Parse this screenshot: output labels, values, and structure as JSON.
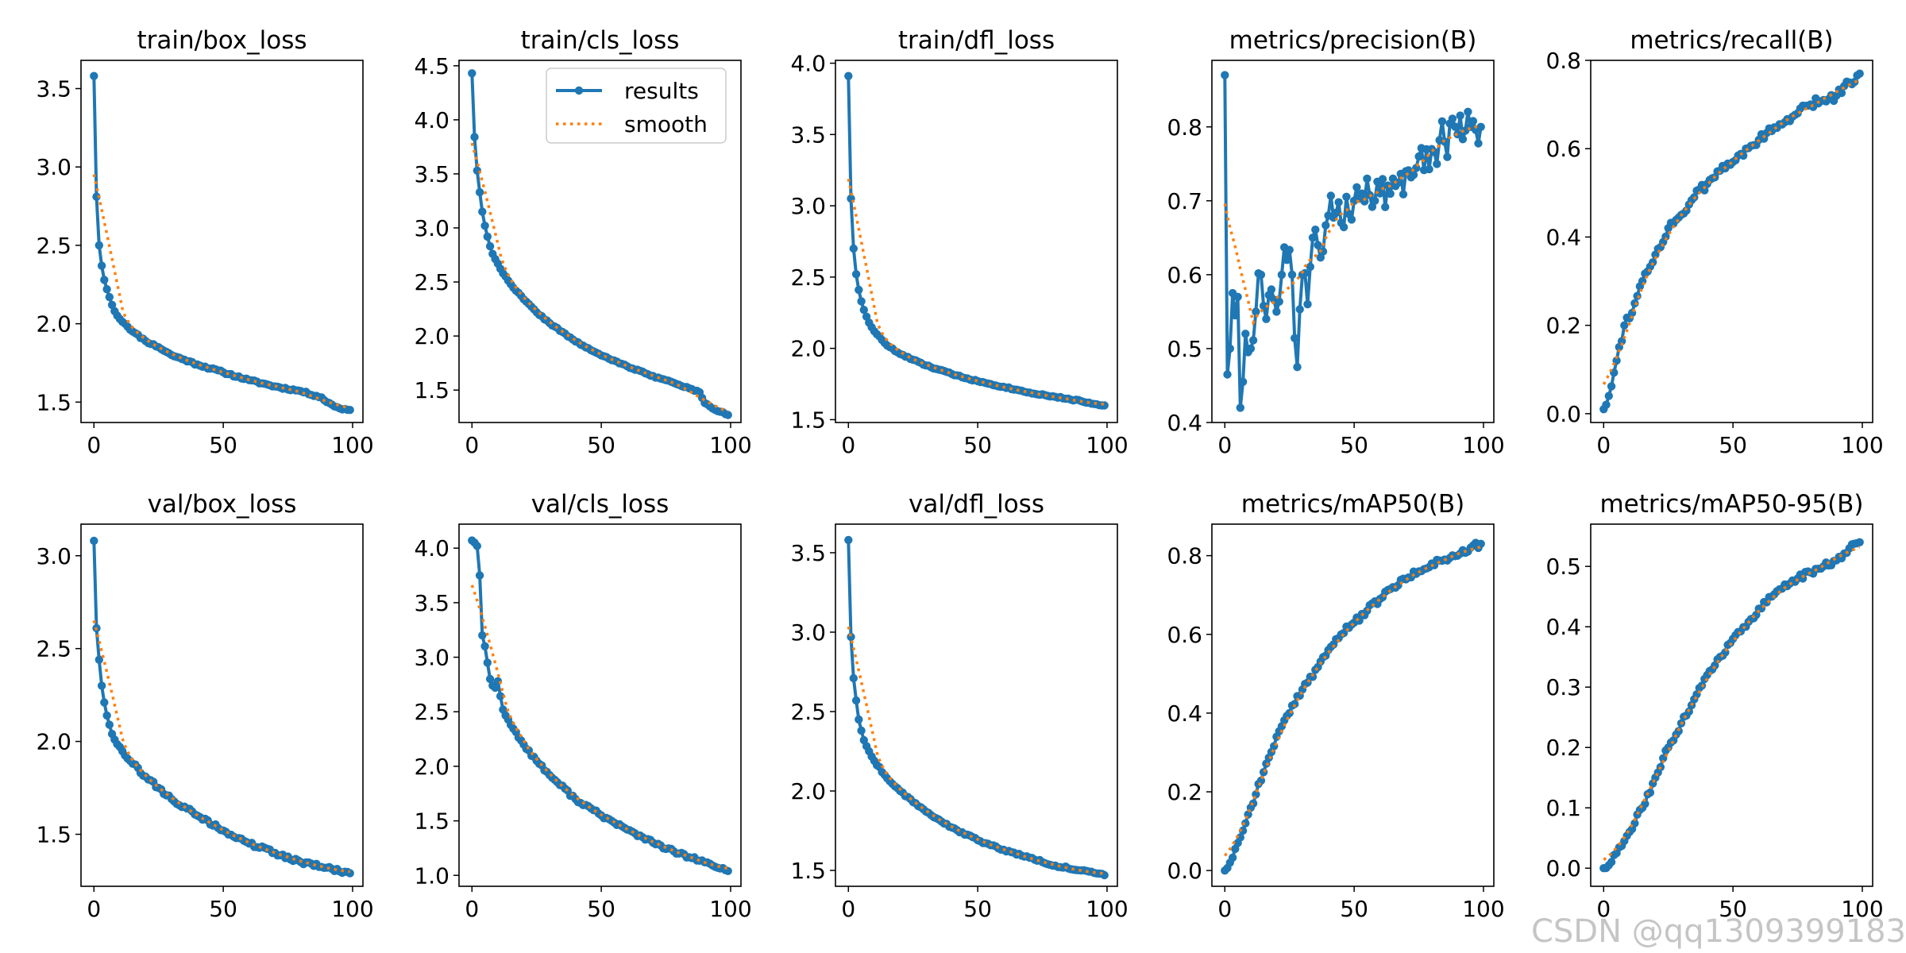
{
  "legend": {
    "results": "results",
    "smooth": "smooth",
    "placement": "upper right, train/cls_loss panel"
  },
  "colors": {
    "results": "#1f77b4",
    "smooth": "#ff7f0e"
  },
  "watermark": "CSDN @qq1309399183",
  "chart_data": [
    {
      "type": "line",
      "title": "train/box_loss",
      "xlim": [
        -5,
        104
      ],
      "ylim": [
        1.37,
        3.68
      ],
      "xticks": [
        0,
        50,
        100
      ],
      "yticks": [
        1.5,
        2.0,
        2.5,
        3.0,
        3.5
      ],
      "ytick_labels": [
        "1.5",
        "2.0",
        "2.5",
        "3.0",
        "3.5"
      ],
      "anchors": [
        [
          0,
          3.58
        ],
        [
          1,
          2.81
        ],
        [
          2,
          2.5
        ],
        [
          3,
          2.37
        ],
        [
          4,
          2.28
        ],
        [
          5,
          2.22
        ],
        [
          6,
          2.17
        ],
        [
          7,
          2.12
        ],
        [
          8,
          2.08
        ],
        [
          10,
          2.03
        ],
        [
          12,
          2.0
        ],
        [
          15,
          1.95
        ],
        [
          20,
          1.89
        ],
        [
          25,
          1.85
        ],
        [
          30,
          1.8
        ],
        [
          35,
          1.77
        ],
        [
          40,
          1.74
        ],
        [
          50,
          1.69
        ],
        [
          60,
          1.64
        ],
        [
          70,
          1.6
        ],
        [
          80,
          1.57
        ],
        [
          88,
          1.53
        ],
        [
          90,
          1.5
        ],
        [
          95,
          1.46
        ],
        [
          99,
          1.45
        ]
      ],
      "noise": 0.006,
      "seed": 11
    },
    {
      "type": "line",
      "title": "train/cls_loss",
      "xlim": [
        -5,
        104
      ],
      "ylim": [
        1.2,
        4.55
      ],
      "xticks": [
        0,
        50,
        100
      ],
      "yticks": [
        1.5,
        2.0,
        2.5,
        3.0,
        3.5,
        4.0,
        4.5
      ],
      "ytick_labels": [
        "1.5",
        "2.0",
        "2.5",
        "3.0",
        "3.5",
        "4.0",
        "4.5"
      ],
      "anchors": [
        [
          0,
          4.43
        ],
        [
          1,
          3.84
        ],
        [
          2,
          3.53
        ],
        [
          3,
          3.33
        ],
        [
          4,
          3.15
        ],
        [
          5,
          3.02
        ],
        [
          6,
          2.92
        ],
        [
          7,
          2.83
        ],
        [
          8,
          2.76
        ],
        [
          10,
          2.67
        ],
        [
          12,
          2.58
        ],
        [
          15,
          2.48
        ],
        [
          20,
          2.34
        ],
        [
          25,
          2.22
        ],
        [
          30,
          2.12
        ],
        [
          40,
          1.95
        ],
        [
          50,
          1.82
        ],
        [
          60,
          1.72
        ],
        [
          70,
          1.63
        ],
        [
          80,
          1.55
        ],
        [
          88,
          1.48
        ],
        [
          90,
          1.38
        ],
        [
          93,
          1.33
        ],
        [
          96,
          1.3
        ],
        [
          99,
          1.27
        ]
      ],
      "noise": 0.006,
      "seed": 22,
      "legend": true
    },
    {
      "type": "line",
      "title": "train/dfl_loss",
      "xlim": [
        -5,
        104
      ],
      "ylim": [
        1.48,
        4.02
      ],
      "xticks": [
        0,
        50,
        100
      ],
      "yticks": [
        1.5,
        2.0,
        2.5,
        3.0,
        3.5,
        4.0
      ],
      "ytick_labels": [
        "1.5",
        "2.0",
        "2.5",
        "3.0",
        "3.5",
        "4.0"
      ],
      "anchors": [
        [
          0,
          3.91
        ],
        [
          1,
          3.05
        ],
        [
          2,
          2.7
        ],
        [
          3,
          2.52
        ],
        [
          4,
          2.41
        ],
        [
          5,
          2.33
        ],
        [
          6,
          2.27
        ],
        [
          8,
          2.18
        ],
        [
          10,
          2.12
        ],
        [
          15,
          2.02
        ],
        [
          20,
          1.96
        ],
        [
          30,
          1.88
        ],
        [
          40,
          1.82
        ],
        [
          50,
          1.77
        ],
        [
          60,
          1.73
        ],
        [
          70,
          1.69
        ],
        [
          80,
          1.66
        ],
        [
          90,
          1.63
        ],
        [
          95,
          1.61
        ],
        [
          99,
          1.6
        ]
      ],
      "noise": 0.005,
      "seed": 33
    },
    {
      "type": "line",
      "title": "metrics/precision(B)",
      "xlim": [
        -5,
        104
      ],
      "ylim": [
        0.4,
        0.89
      ],
      "xticks": [
        0,
        50,
        100
      ],
      "yticks": [
        0.4,
        0.5,
        0.6,
        0.7,
        0.8
      ],
      "ytick_labels": [
        "0.4",
        "0.5",
        "0.6",
        "0.7",
        "0.8"
      ],
      "anchors": [
        [
          0,
          0.87
        ],
        [
          1,
          0.465
        ],
        [
          2,
          0.5
        ],
        [
          3,
          0.575
        ],
        [
          4,
          0.545
        ],
        [
          5,
          0.57
        ],
        [
          6,
          0.42
        ],
        [
          7,
          0.455
        ],
        [
          8,
          0.52
        ],
        [
          10,
          0.5
        ],
        [
          12,
          0.55
        ],
        [
          14,
          0.6
        ],
        [
          16,
          0.54
        ],
        [
          18,
          0.58
        ],
        [
          20,
          0.55
        ],
        [
          22,
          0.6
        ],
        [
          24,
          0.62
        ],
        [
          26,
          0.6
        ],
        [
          28,
          0.475
        ],
        [
          30,
          0.6
        ],
        [
          32,
          0.56
        ],
        [
          34,
          0.65
        ],
        [
          36,
          0.64
        ],
        [
          40,
          0.68
        ],
        [
          45,
          0.67
        ],
        [
          50,
          0.7
        ],
        [
          55,
          0.73
        ],
        [
          58,
          0.7
        ],
        [
          60,
          0.71
        ],
        [
          65,
          0.73
        ],
        [
          70,
          0.74
        ],
        [
          75,
          0.76
        ],
        [
          80,
          0.77
        ],
        [
          85,
          0.78
        ],
        [
          90,
          0.79
        ],
        [
          95,
          0.8
        ],
        [
          99,
          0.8
        ]
      ],
      "noise": 0.03,
      "seed": 44
    },
    {
      "type": "line",
      "title": "metrics/recall(B)",
      "xlim": [
        -5,
        104
      ],
      "ylim": [
        -0.02,
        0.8
      ],
      "xticks": [
        0,
        50,
        100
      ],
      "yticks": [
        0.0,
        0.2,
        0.4,
        0.6,
        0.8
      ],
      "ytick_labels": [
        "0.0",
        "0.2",
        "0.4",
        "0.6",
        "0.8"
      ],
      "anchors": [
        [
          0,
          0.01
        ],
        [
          2,
          0.04
        ],
        [
          5,
          0.12
        ],
        [
          8,
          0.2
        ],
        [
          12,
          0.25
        ],
        [
          15,
          0.3
        ],
        [
          20,
          0.36
        ],
        [
          25,
          0.42
        ],
        [
          30,
          0.45
        ],
        [
          35,
          0.49
        ],
        [
          40,
          0.52
        ],
        [
          45,
          0.55
        ],
        [
          50,
          0.57
        ],
        [
          55,
          0.6
        ],
        [
          60,
          0.62
        ],
        [
          65,
          0.64
        ],
        [
          70,
          0.66
        ],
        [
          75,
          0.68
        ],
        [
          80,
          0.7
        ],
        [
          85,
          0.71
        ],
        [
          90,
          0.72
        ],
        [
          95,
          0.75
        ],
        [
          99,
          0.77
        ]
      ],
      "noise": 0.01,
      "seed": 55
    },
    {
      "type": "line",
      "title": "val/box_loss",
      "xlim": [
        -5,
        104
      ],
      "ylim": [
        1.22,
        3.17
      ],
      "xticks": [
        0,
        50,
        100
      ],
      "yticks": [
        1.5,
        2.0,
        2.5,
        3.0
      ],
      "ytick_labels": [
        "1.5",
        "2.0",
        "2.5",
        "3.0"
      ],
      "anchors": [
        [
          0,
          3.08
        ],
        [
          1,
          2.61
        ],
        [
          2,
          2.44
        ],
        [
          3,
          2.3
        ],
        [
          4,
          2.21
        ],
        [
          5,
          2.14
        ],
        [
          6,
          2.09
        ],
        [
          7,
          2.04
        ],
        [
          8,
          2.01
        ],
        [
          10,
          1.97
        ],
        [
          15,
          1.88
        ],
        [
          20,
          1.81
        ],
        [
          25,
          1.75
        ],
        [
          30,
          1.69
        ],
        [
          40,
          1.6
        ],
        [
          50,
          1.52
        ],
        [
          60,
          1.45
        ],
        [
          70,
          1.4
        ],
        [
          80,
          1.35
        ],
        [
          90,
          1.32
        ],
        [
          95,
          1.3
        ],
        [
          99,
          1.29
        ]
      ],
      "noise": 0.01,
      "seed": 66
    },
    {
      "type": "line",
      "title": "val/cls_loss",
      "xlim": [
        -5,
        104
      ],
      "ylim": [
        0.9,
        4.22
      ],
      "xticks": [
        0,
        50,
        100
      ],
      "yticks": [
        1.0,
        1.5,
        2.0,
        2.5,
        3.0,
        3.5,
        4.0
      ],
      "ytick_labels": [
        "1.0",
        "1.5",
        "2.0",
        "2.5",
        "3.0",
        "3.5",
        "4.0"
      ],
      "anchors": [
        [
          0,
          4.07
        ],
        [
          1,
          4.05
        ],
        [
          2,
          4.02
        ],
        [
          3,
          3.75
        ],
        [
          4,
          3.2
        ],
        [
          5,
          3.1
        ],
        [
          6,
          2.95
        ],
        [
          7,
          2.8
        ],
        [
          8,
          2.74
        ],
        [
          9,
          2.72
        ],
        [
          10,
          2.78
        ],
        [
          12,
          2.52
        ],
        [
          15,
          2.38
        ],
        [
          20,
          2.2
        ],
        [
          25,
          2.05
        ],
        [
          30,
          1.92
        ],
        [
          40,
          1.7
        ],
        [
          50,
          1.55
        ],
        [
          60,
          1.42
        ],
        [
          70,
          1.3
        ],
        [
          80,
          1.2
        ],
        [
          90,
          1.12
        ],
        [
          95,
          1.07
        ],
        [
          99,
          1.04
        ]
      ],
      "noise": 0.015,
      "seed": 77
    },
    {
      "type": "line",
      "title": "val/dfl_loss",
      "xlim": [
        -5,
        104
      ],
      "ylim": [
        1.4,
        3.68
      ],
      "xticks": [
        0,
        50,
        100
      ],
      "yticks": [
        1.5,
        2.0,
        2.5,
        3.0,
        3.5
      ],
      "ytick_labels": [
        "1.5",
        "2.0",
        "2.5",
        "3.0",
        "3.5"
      ],
      "anchors": [
        [
          0,
          3.58
        ],
        [
          1,
          2.97
        ],
        [
          2,
          2.71
        ],
        [
          3,
          2.57
        ],
        [
          4,
          2.45
        ],
        [
          5,
          2.38
        ],
        [
          6,
          2.32
        ],
        [
          8,
          2.25
        ],
        [
          10,
          2.19
        ],
        [
          15,
          2.08
        ],
        [
          20,
          2.0
        ],
        [
          30,
          1.87
        ],
        [
          40,
          1.77
        ],
        [
          50,
          1.69
        ],
        [
          60,
          1.63
        ],
        [
          70,
          1.58
        ],
        [
          80,
          1.53
        ],
        [
          90,
          1.5
        ],
        [
          99,
          1.47
        ]
      ],
      "noise": 0.006,
      "seed": 88
    },
    {
      "type": "line",
      "title": "metrics/mAP50(B)",
      "xlim": [
        -5,
        104
      ],
      "ylim": [
        -0.04,
        0.88
      ],
      "xticks": [
        0,
        50,
        100
      ],
      "yticks": [
        0.0,
        0.2,
        0.4,
        0.6,
        0.8
      ],
      "ytick_labels": [
        "0.0",
        "0.2",
        "0.4",
        "0.6",
        "0.8"
      ],
      "anchors": [
        [
          0,
          0.0
        ],
        [
          2,
          0.02
        ],
        [
          5,
          0.07
        ],
        [
          8,
          0.12
        ],
        [
          10,
          0.16
        ],
        [
          15,
          0.25
        ],
        [
          20,
          0.34
        ],
        [
          25,
          0.4
        ],
        [
          30,
          0.46
        ],
        [
          35,
          0.51
        ],
        [
          40,
          0.56
        ],
        [
          45,
          0.6
        ],
        [
          50,
          0.63
        ],
        [
          55,
          0.66
        ],
        [
          60,
          0.69
        ],
        [
          65,
          0.72
        ],
        [
          70,
          0.74
        ],
        [
          75,
          0.76
        ],
        [
          80,
          0.78
        ],
        [
          85,
          0.79
        ],
        [
          90,
          0.8
        ],
        [
          95,
          0.82
        ],
        [
          99,
          0.83
        ]
      ],
      "noise": 0.008,
      "seed": 99
    },
    {
      "type": "line",
      "title": "metrics/mAP50-95(B)",
      "xlim": [
        -5,
        104
      ],
      "ylim": [
        -0.03,
        0.57
      ],
      "xticks": [
        0,
        50,
        100
      ],
      "yticks": [
        0.0,
        0.1,
        0.2,
        0.3,
        0.4,
        0.5
      ],
      "ytick_labels": [
        "0.0",
        "0.1",
        "0.2",
        "0.3",
        "0.4",
        "0.5"
      ],
      "anchors": [
        [
          0,
          0.0
        ],
        [
          2,
          0.005
        ],
        [
          5,
          0.025
        ],
        [
          8,
          0.045
        ],
        [
          10,
          0.06
        ],
        [
          15,
          0.1
        ],
        [
          20,
          0.15
        ],
        [
          25,
          0.2
        ],
        [
          30,
          0.24
        ],
        [
          35,
          0.28
        ],
        [
          40,
          0.32
        ],
        [
          45,
          0.35
        ],
        [
          50,
          0.38
        ],
        [
          55,
          0.4
        ],
        [
          60,
          0.43
        ],
        [
          65,
          0.45
        ],
        [
          70,
          0.47
        ],
        [
          75,
          0.48
        ],
        [
          80,
          0.49
        ],
        [
          85,
          0.5
        ],
        [
          90,
          0.51
        ],
        [
          95,
          0.53
        ],
        [
          99,
          0.54
        ]
      ],
      "noise": 0.005,
      "seed": 111
    }
  ]
}
